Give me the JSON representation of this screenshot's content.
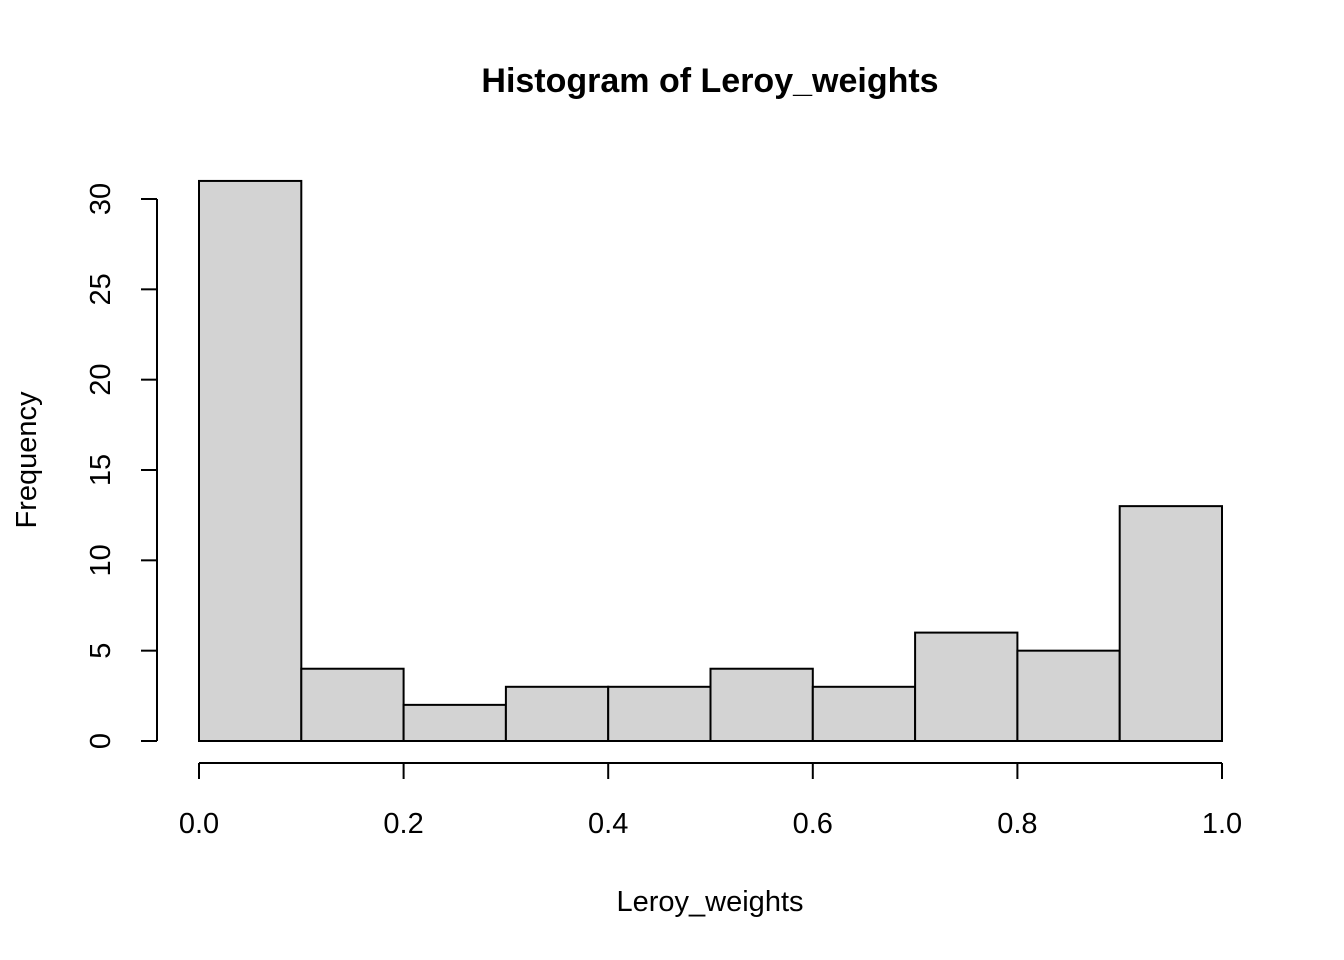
{
  "chart_data": {
    "type": "bar",
    "title": "Histogram of Leroy_weights",
    "xlabel": "Leroy_weights",
    "ylabel": "Frequency",
    "bins": [
      {
        "from": 0.0,
        "to": 0.1,
        "count": 31
      },
      {
        "from": 0.1,
        "to": 0.2,
        "count": 4
      },
      {
        "from": 0.2,
        "to": 0.3,
        "count": 2
      },
      {
        "from": 0.3,
        "to": 0.4,
        "count": 3
      },
      {
        "from": 0.4,
        "to": 0.5,
        "count": 3
      },
      {
        "from": 0.5,
        "to": 0.6,
        "count": 4
      },
      {
        "from": 0.6,
        "to": 0.7,
        "count": 3
      },
      {
        "from": 0.7,
        "to": 0.8,
        "count": 6
      },
      {
        "from": 0.8,
        "to": 0.9,
        "count": 5
      },
      {
        "from": 0.9,
        "to": 1.0,
        "count": 13
      }
    ],
    "xlim": [
      0,
      1
    ],
    "ylim": [
      0,
      31
    ],
    "x_ticks": [
      "0.0",
      "0.2",
      "0.4",
      "0.6",
      "0.8",
      "1.0"
    ],
    "y_ticks": [
      "0",
      "5",
      "10",
      "15",
      "20",
      "25",
      "30"
    ],
    "grid": false,
    "colors": {
      "bar_fill": "#d3d3d3",
      "bar_stroke": "#000000"
    }
  }
}
